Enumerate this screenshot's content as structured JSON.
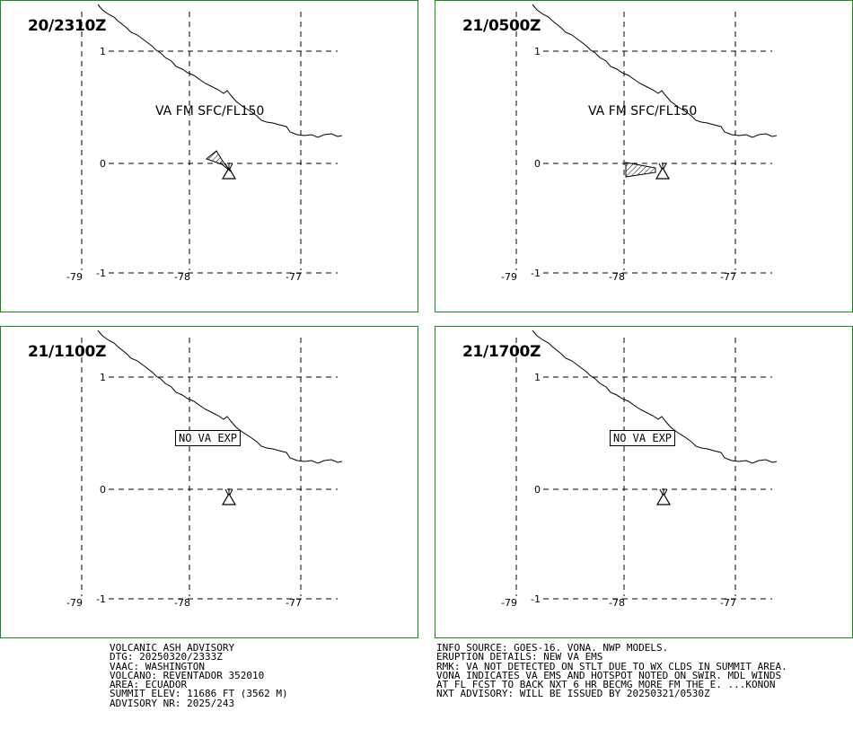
{
  "panels": [
    {
      "time": "20/2310Z",
      "label": "VA FM SFC/FL150",
      "type": "va"
    },
    {
      "time": "21/0500Z",
      "label": "VA FM SFC/FL150",
      "type": "va"
    },
    {
      "time": "21/1100Z",
      "label": "NO VA EXP",
      "type": "none"
    },
    {
      "time": "21/1700Z",
      "label": "NO VA EXP",
      "type": "none"
    }
  ],
  "axes": {
    "lat_labels": [
      "1",
      "0",
      "-1"
    ],
    "lon_labels": [
      "-79",
      "-78",
      "-77"
    ]
  },
  "advisory_left": [
    "VOLCANIC ASH ADVISORY",
    "DTG: 20250320/2333Z",
    "VAAC: WASHINGTON",
    "VOLCANO: REVENTADOR 352010",
    "AREA: ECUADOR",
    "SUMMIT ELEV: 11686 FT (3562 M)",
    "ADVISORY NR: 2025/243"
  ],
  "advisory_right": [
    "INFO SOURCE: GOES-16. VONA. NWP MODELS.",
    "ERUPTION DETAILS: NEW VA EMS",
    "RMK: VA NOT DETECTED ON STLT DUE TO WX CLDS IN SUMMIT AREA.",
    "VONA INDICATES VA EMS AND HOTSPOT NOTED ON SWIR. MDL WINDS",
    "AT FL FCST TO BACK NXT 6 HR BECMG MORE FM THE E. ...KONON",
    "NXT ADVISORY: WILL BE ISSUED BY 20250321/0530Z"
  ],
  "colors": {
    "border": "#1a8a1a",
    "ink": "#000000"
  }
}
